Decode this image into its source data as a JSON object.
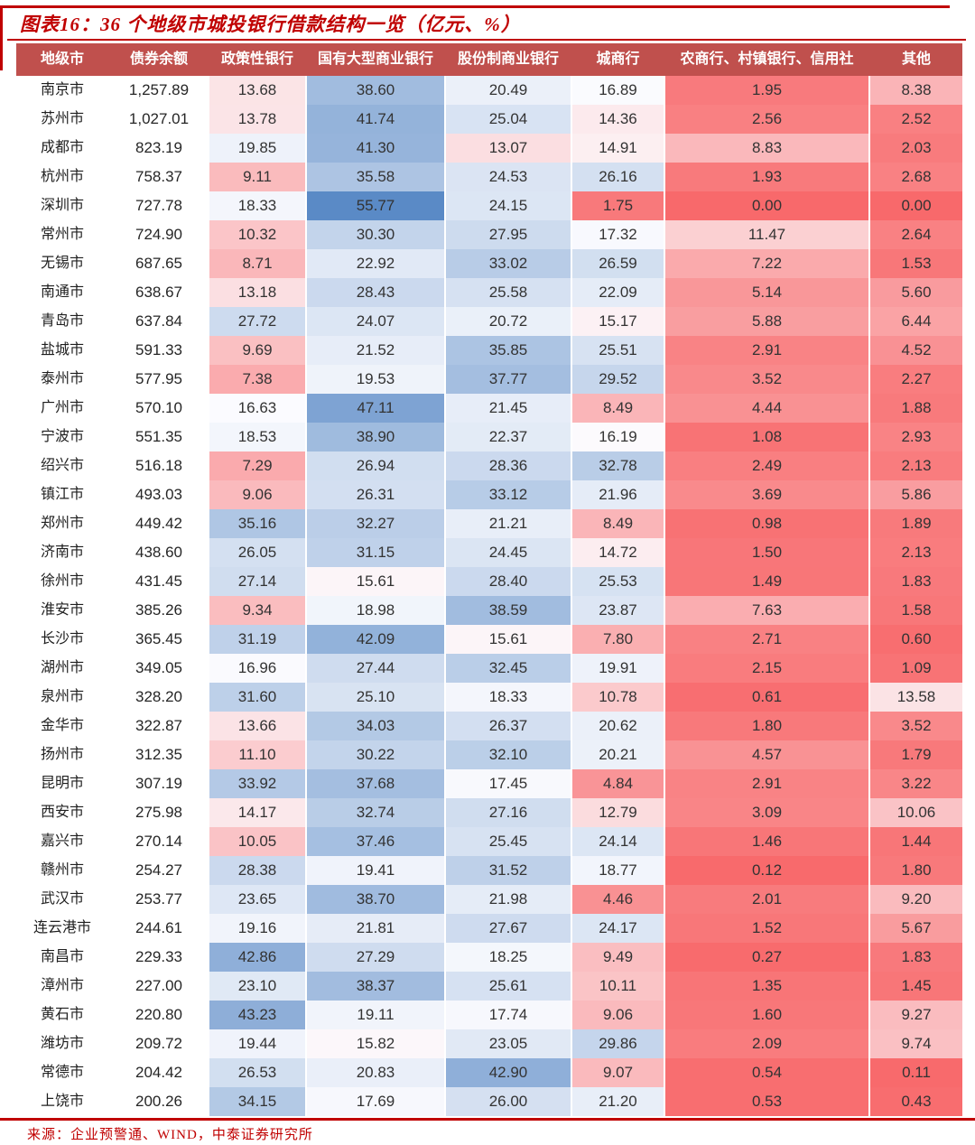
{
  "figure": {
    "title": "图表16：36 个地级市城投银行借款结构一览（亿元、%）",
    "source": "来源：企业预警通、WIND，中泰证券研究所"
  },
  "colors": {
    "accent_red": "#C00000",
    "header_bg": "#C0504D",
    "header_text": "#FFFFFF",
    "body_text": "#333333",
    "scale_low_red": "#F8696B",
    "scale_mid_white": "#FCFCFF",
    "scale_high_blue": "#5A8AC6"
  },
  "table": {
    "columns": [
      "地级市",
      "债券余额",
      "政策性银行",
      "国有大型商业银行",
      "股份制商业银行",
      "城商行",
      "农商行、村镇银行、信用社",
      "其他"
    ],
    "rows": [
      {
        "city": "南京市",
        "balance": "1,257.89",
        "values": [
          "13.68",
          "38.60",
          "20.49",
          "16.89",
          "1.95",
          "8.38"
        ]
      },
      {
        "city": "苏州市",
        "balance": "1,027.01",
        "values": [
          "13.78",
          "41.74",
          "25.04",
          "14.36",
          "2.56",
          "2.52"
        ]
      },
      {
        "city": "成都市",
        "balance": "823.19",
        "values": [
          "19.85",
          "41.30",
          "13.07",
          "14.91",
          "8.83",
          "2.03"
        ]
      },
      {
        "city": "杭州市",
        "balance": "758.37",
        "values": [
          "9.11",
          "35.58",
          "24.53",
          "26.16",
          "1.93",
          "2.68"
        ]
      },
      {
        "city": "深圳市",
        "balance": "727.78",
        "values": [
          "18.33",
          "55.77",
          "24.15",
          "1.75",
          "0.00",
          "0.00"
        ]
      },
      {
        "city": "常州市",
        "balance": "724.90",
        "values": [
          "10.32",
          "30.30",
          "27.95",
          "17.32",
          "11.47",
          "2.64"
        ]
      },
      {
        "city": "无锡市",
        "balance": "687.65",
        "values": [
          "8.71",
          "22.92",
          "33.02",
          "26.59",
          "7.22",
          "1.53"
        ]
      },
      {
        "city": "南通市",
        "balance": "638.67",
        "values": [
          "13.18",
          "28.43",
          "25.58",
          "22.09",
          "5.14",
          "5.60"
        ]
      },
      {
        "city": "青岛市",
        "balance": "637.84",
        "values": [
          "27.72",
          "24.07",
          "20.72",
          "15.17",
          "5.88",
          "6.44"
        ]
      },
      {
        "city": "盐城市",
        "balance": "591.33",
        "values": [
          "9.69",
          "21.52",
          "35.85",
          "25.51",
          "2.91",
          "4.52"
        ]
      },
      {
        "city": "泰州市",
        "balance": "577.95",
        "values": [
          "7.38",
          "19.53",
          "37.77",
          "29.52",
          "3.52",
          "2.27"
        ]
      },
      {
        "city": "广州市",
        "balance": "570.10",
        "values": [
          "16.63",
          "47.11",
          "21.45",
          "8.49",
          "4.44",
          "1.88"
        ]
      },
      {
        "city": "宁波市",
        "balance": "551.35",
        "values": [
          "18.53",
          "38.90",
          "22.37",
          "16.19",
          "1.08",
          "2.93"
        ]
      },
      {
        "city": "绍兴市",
        "balance": "516.18",
        "values": [
          "7.29",
          "26.94",
          "28.36",
          "32.78",
          "2.49",
          "2.13"
        ]
      },
      {
        "city": "镇江市",
        "balance": "493.03",
        "values": [
          "9.06",
          "26.31",
          "33.12",
          "21.96",
          "3.69",
          "5.86"
        ]
      },
      {
        "city": "郑州市",
        "balance": "449.42",
        "values": [
          "35.16",
          "32.27",
          "21.21",
          "8.49",
          "0.98",
          "1.89"
        ]
      },
      {
        "city": "济南市",
        "balance": "438.60",
        "values": [
          "26.05",
          "31.15",
          "24.45",
          "14.72",
          "1.50",
          "2.13"
        ]
      },
      {
        "city": "徐州市",
        "balance": "431.45",
        "values": [
          "27.14",
          "15.61",
          "28.40",
          "25.53",
          "1.49",
          "1.83"
        ]
      },
      {
        "city": "淮安市",
        "balance": "385.26",
        "values": [
          "9.34",
          "18.98",
          "38.59",
          "23.87",
          "7.63",
          "1.58"
        ]
      },
      {
        "city": "长沙市",
        "balance": "365.45",
        "values": [
          "31.19",
          "42.09",
          "15.61",
          "7.80",
          "2.71",
          "0.60"
        ]
      },
      {
        "city": "湖州市",
        "balance": "349.05",
        "values": [
          "16.96",
          "27.44",
          "32.45",
          "19.91",
          "2.15",
          "1.09"
        ]
      },
      {
        "city": "泉州市",
        "balance": "328.20",
        "values": [
          "31.60",
          "25.10",
          "18.33",
          "10.78",
          "0.61",
          "13.58"
        ]
      },
      {
        "city": "金华市",
        "balance": "322.87",
        "values": [
          "13.66",
          "34.03",
          "26.37",
          "20.62",
          "1.80",
          "3.52"
        ]
      },
      {
        "city": "扬州市",
        "balance": "312.35",
        "values": [
          "11.10",
          "30.22",
          "32.10",
          "20.21",
          "4.57",
          "1.79"
        ]
      },
      {
        "city": "昆明市",
        "balance": "307.19",
        "values": [
          "33.92",
          "37.68",
          "17.45",
          "4.84",
          "2.91",
          "3.22"
        ]
      },
      {
        "city": "西安市",
        "balance": "275.98",
        "values": [
          "14.17",
          "32.74",
          "27.16",
          "12.79",
          "3.09",
          "10.06"
        ]
      },
      {
        "city": "嘉兴市",
        "balance": "270.14",
        "values": [
          "10.05",
          "37.46",
          "25.45",
          "24.14",
          "1.46",
          "1.44"
        ]
      },
      {
        "city": "赣州市",
        "balance": "254.27",
        "values": [
          "28.38",
          "19.41",
          "31.52",
          "18.77",
          "0.12",
          "1.80"
        ]
      },
      {
        "city": "武汉市",
        "balance": "253.77",
        "values": [
          "23.65",
          "38.70",
          "21.98",
          "4.46",
          "2.01",
          "9.20"
        ]
      },
      {
        "city": "连云港市",
        "balance": "244.61",
        "values": [
          "19.16",
          "21.81",
          "27.67",
          "24.17",
          "1.52",
          "5.67"
        ]
      },
      {
        "city": "南昌市",
        "balance": "229.33",
        "values": [
          "42.86",
          "27.29",
          "18.25",
          "9.49",
          "0.27",
          "1.83"
        ]
      },
      {
        "city": "漳州市",
        "balance": "227.00",
        "values": [
          "23.10",
          "38.37",
          "25.61",
          "10.11",
          "1.35",
          "1.45"
        ]
      },
      {
        "city": "黄石市",
        "balance": "220.80",
        "values": [
          "43.23",
          "19.11",
          "17.74",
          "9.06",
          "1.60",
          "9.27"
        ]
      },
      {
        "city": "潍坊市",
        "balance": "209.72",
        "values": [
          "19.44",
          "15.82",
          "23.05",
          "29.86",
          "2.09",
          "9.74"
        ]
      },
      {
        "city": "常德市",
        "balance": "204.42",
        "values": [
          "26.53",
          "20.83",
          "42.90",
          "9.07",
          "0.54",
          "0.11"
        ]
      },
      {
        "city": "上饶市",
        "balance": "200.26",
        "values": [
          "34.15",
          "17.69",
          "26.00",
          "21.20",
          "0.53",
          "0.43"
        ]
      }
    ]
  },
  "chart_data": {
    "type": "table",
    "title": "图表16：36 个地级市城投银行借款结构一览（亿元、%）",
    "heatmap": "red-white-blue 3-color scale over the six percentage columns, white at median (~17.5), red at 0.00, blue at 55.77",
    "note": "values duplicated from table.rows"
  }
}
